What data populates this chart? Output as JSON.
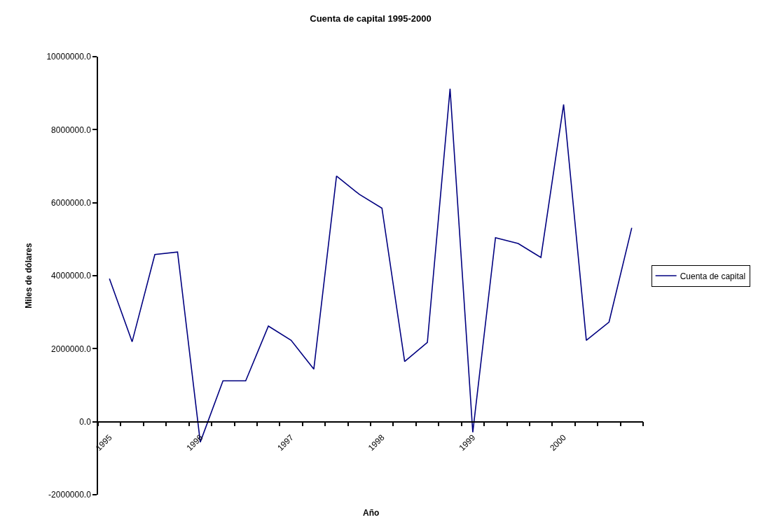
{
  "chart_data": {
    "type": "line",
    "title": "Cuenta de capital 1995-2000",
    "xlabel": "Año",
    "ylabel": "Miles de dólares",
    "categories": [
      "1995",
      null,
      null,
      null,
      "1996",
      null,
      null,
      null,
      "1997",
      null,
      null,
      null,
      "1998",
      null,
      null,
      null,
      "1999",
      null,
      null,
      null,
      "2000",
      null,
      null,
      null
    ],
    "series": [
      {
        "name": "Cuenta de capital",
        "color": "#000080",
        "values": [
          3920000,
          2190000,
          4580000,
          4650000,
          -560000,
          1120000,
          1120000,
          2620000,
          2230000,
          1440000,
          6730000,
          6230000,
          5850000,
          1650000,
          2170000,
          9120000,
          -290000,
          5040000,
          4880000,
          4500000,
          8690000,
          2230000,
          2730000,
          5310000
        ]
      }
    ],
    "ylim": [
      -2000000,
      10000000
    ],
    "yticks": [
      {
        "value": -2000000,
        "label": "-2000000.0"
      },
      {
        "value": 0,
        "label": "0.0"
      },
      {
        "value": 2000000,
        "label": "2000000.0"
      },
      {
        "value": 4000000,
        "label": "4000000.0"
      },
      {
        "value": 6000000,
        "label": "6000000.0"
      },
      {
        "value": 8000000,
        "label": "8000000.0"
      },
      {
        "value": 10000000,
        "label": "10000000.0"
      }
    ],
    "legend": "right",
    "marker": "none",
    "line_style": "solid"
  }
}
